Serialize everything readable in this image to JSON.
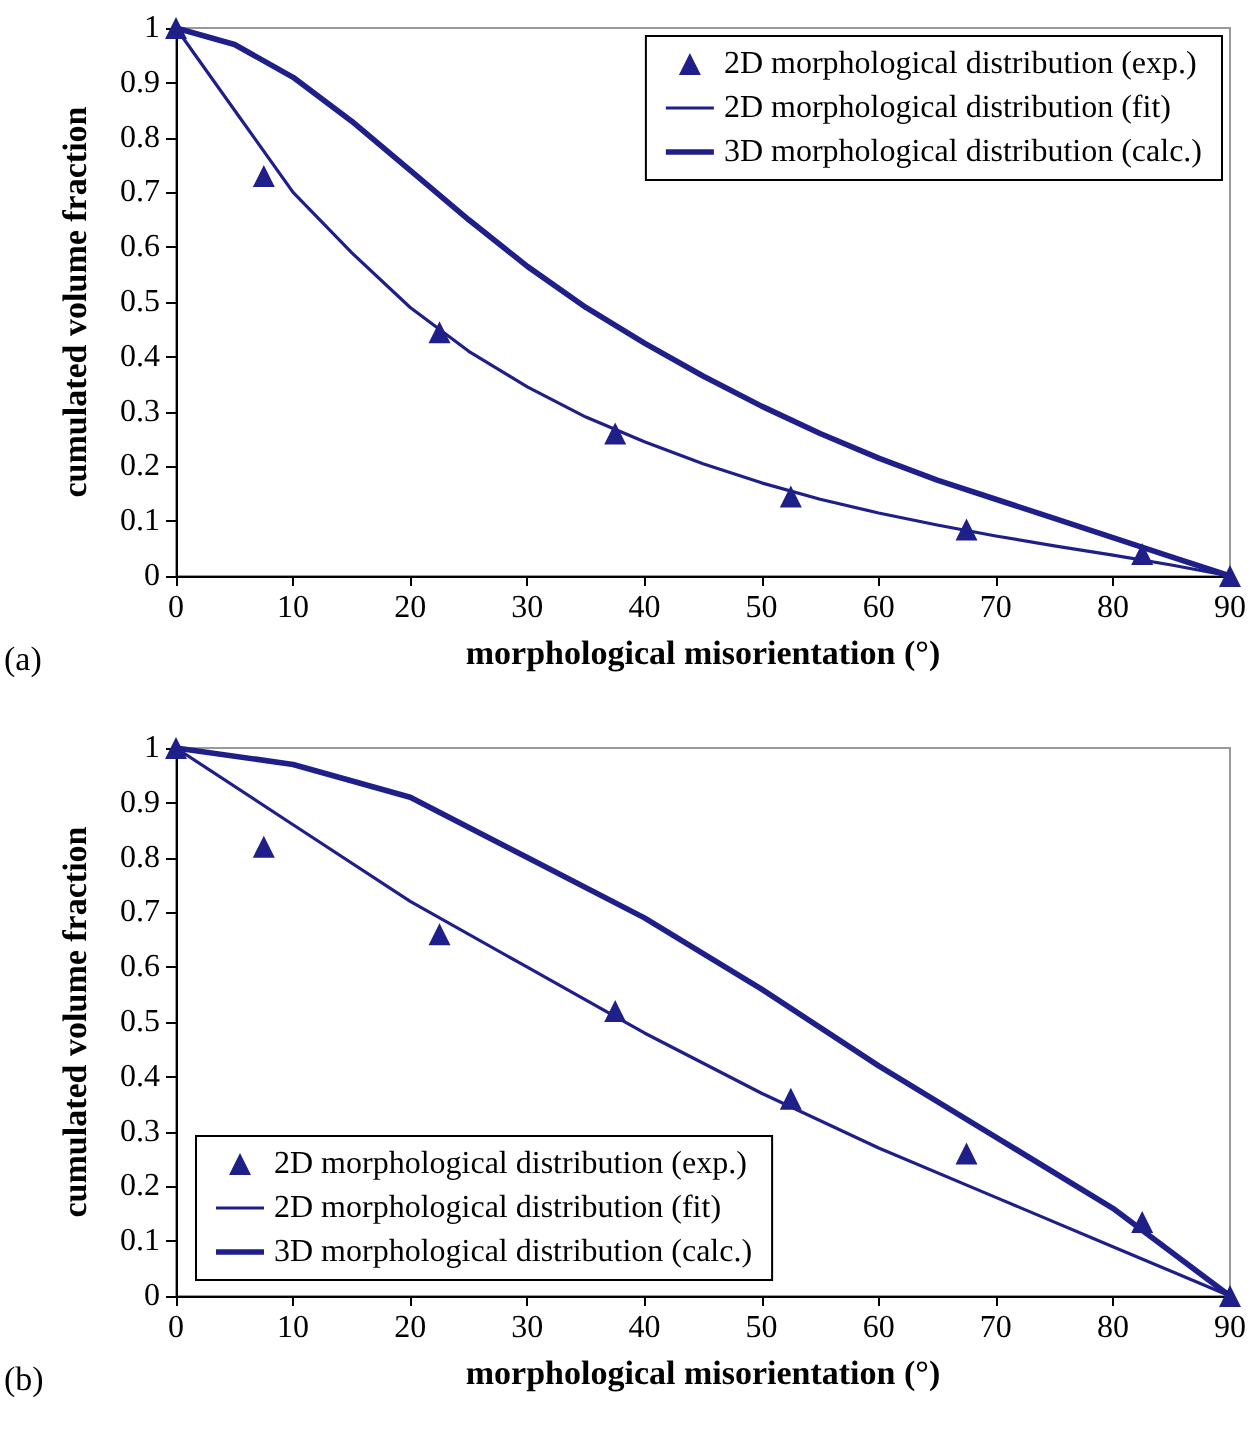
{
  "chart_data": [
    {
      "type": "line",
      "xlabel": "morphological misorientation (°)",
      "ylabel": "cumulated volume fraction",
      "annotations": [
        "(a)"
      ],
      "xlim": [
        0,
        90
      ],
      "xticks": [
        0,
        10,
        20,
        30,
        40,
        50,
        60,
        70,
        80,
        90
      ],
      "ylim": [
        0,
        1
      ],
      "yticks": [
        0,
        0.1,
        0.2,
        0.3,
        0.4,
        0.5,
        0.6,
        0.7,
        0.8,
        0.9,
        1
      ],
      "grid": false,
      "legend": "top right",
      "series": [
        {
          "name": "2D morphological distribution (exp.)",
          "type": "scatter",
          "marker": "triangle",
          "color": "#1f1f8a",
          "x": [
            0,
            7.5,
            22.5,
            37.5,
            52.5,
            67.5,
            82.5,
            90
          ],
          "values": [
            1,
            0.73,
            0.445,
            0.26,
            0.145,
            0.085,
            0.04,
            0
          ]
        },
        {
          "name": "2D morphological distribution (fit)",
          "type": "line",
          "marker": "none",
          "color": "#1f1f8a",
          "x": [
            0,
            5,
            10,
            15,
            20,
            25,
            30,
            35,
            40,
            45,
            50,
            55,
            60,
            65,
            70,
            75,
            80,
            85,
            90
          ],
          "values": [
            1,
            0.85,
            0.7,
            0.59,
            0.49,
            0.41,
            0.345,
            0.29,
            0.245,
            0.205,
            0.17,
            0.14,
            0.115,
            0.093,
            0.073,
            0.055,
            0.038,
            0.02,
            0
          ]
        },
        {
          "name": "3D morphological distribution (calc.)",
          "type": "line",
          "marker": "none",
          "color": "#1f1f8a",
          "x": [
            0,
            5,
            10,
            15,
            20,
            25,
            30,
            35,
            40,
            45,
            50,
            55,
            60,
            65,
            70,
            75,
            80,
            85,
            90
          ],
          "values": [
            1,
            0.97,
            0.91,
            0.83,
            0.74,
            0.65,
            0.565,
            0.49,
            0.425,
            0.365,
            0.31,
            0.26,
            0.215,
            0.175,
            0.14,
            0.105,
            0.07,
            0.035,
            0
          ]
        }
      ]
    },
    {
      "type": "line",
      "xlabel": "morphological misorientation (°)",
      "ylabel": "cumulated volume fraction",
      "annotations": [
        "(b)"
      ],
      "xlim": [
        0,
        90
      ],
      "xticks": [
        0,
        10,
        20,
        30,
        40,
        50,
        60,
        70,
        80,
        90
      ],
      "ylim": [
        0,
        1
      ],
      "yticks": [
        0,
        0.1,
        0.2,
        0.3,
        0.4,
        0.5,
        0.6,
        0.7,
        0.8,
        0.9,
        1
      ],
      "grid": false,
      "legend": "bottom left",
      "series": [
        {
          "name": "2D morphological distribution (exp.)",
          "type": "scatter",
          "marker": "triangle",
          "color": "#1f1f8a",
          "x": [
            0,
            7.5,
            22.5,
            37.5,
            52.5,
            67.5,
            82.5,
            90
          ],
          "values": [
            1,
            0.82,
            0.66,
            0.52,
            0.36,
            0.26,
            0.135,
            0
          ]
        },
        {
          "name": "2D morphological distribution (fit)",
          "type": "line",
          "marker": "none",
          "color": "#1f1f8a",
          "x": [
            0,
            10,
            20,
            30,
            40,
            50,
            60,
            70,
            80,
            90
          ],
          "values": [
            1,
            0.86,
            0.72,
            0.6,
            0.48,
            0.37,
            0.27,
            0.18,
            0.09,
            0
          ]
        },
        {
          "name": "3D morphological distribution (calc.)",
          "type": "line",
          "marker": "none",
          "color": "#1f1f8a",
          "x": [
            0,
            10,
            20,
            30,
            40,
            50,
            60,
            70,
            80,
            90
          ],
          "values": [
            1,
            0.97,
            0.91,
            0.8,
            0.69,
            0.56,
            0.42,
            0.29,
            0.16,
            0
          ]
        }
      ]
    }
  ]
}
